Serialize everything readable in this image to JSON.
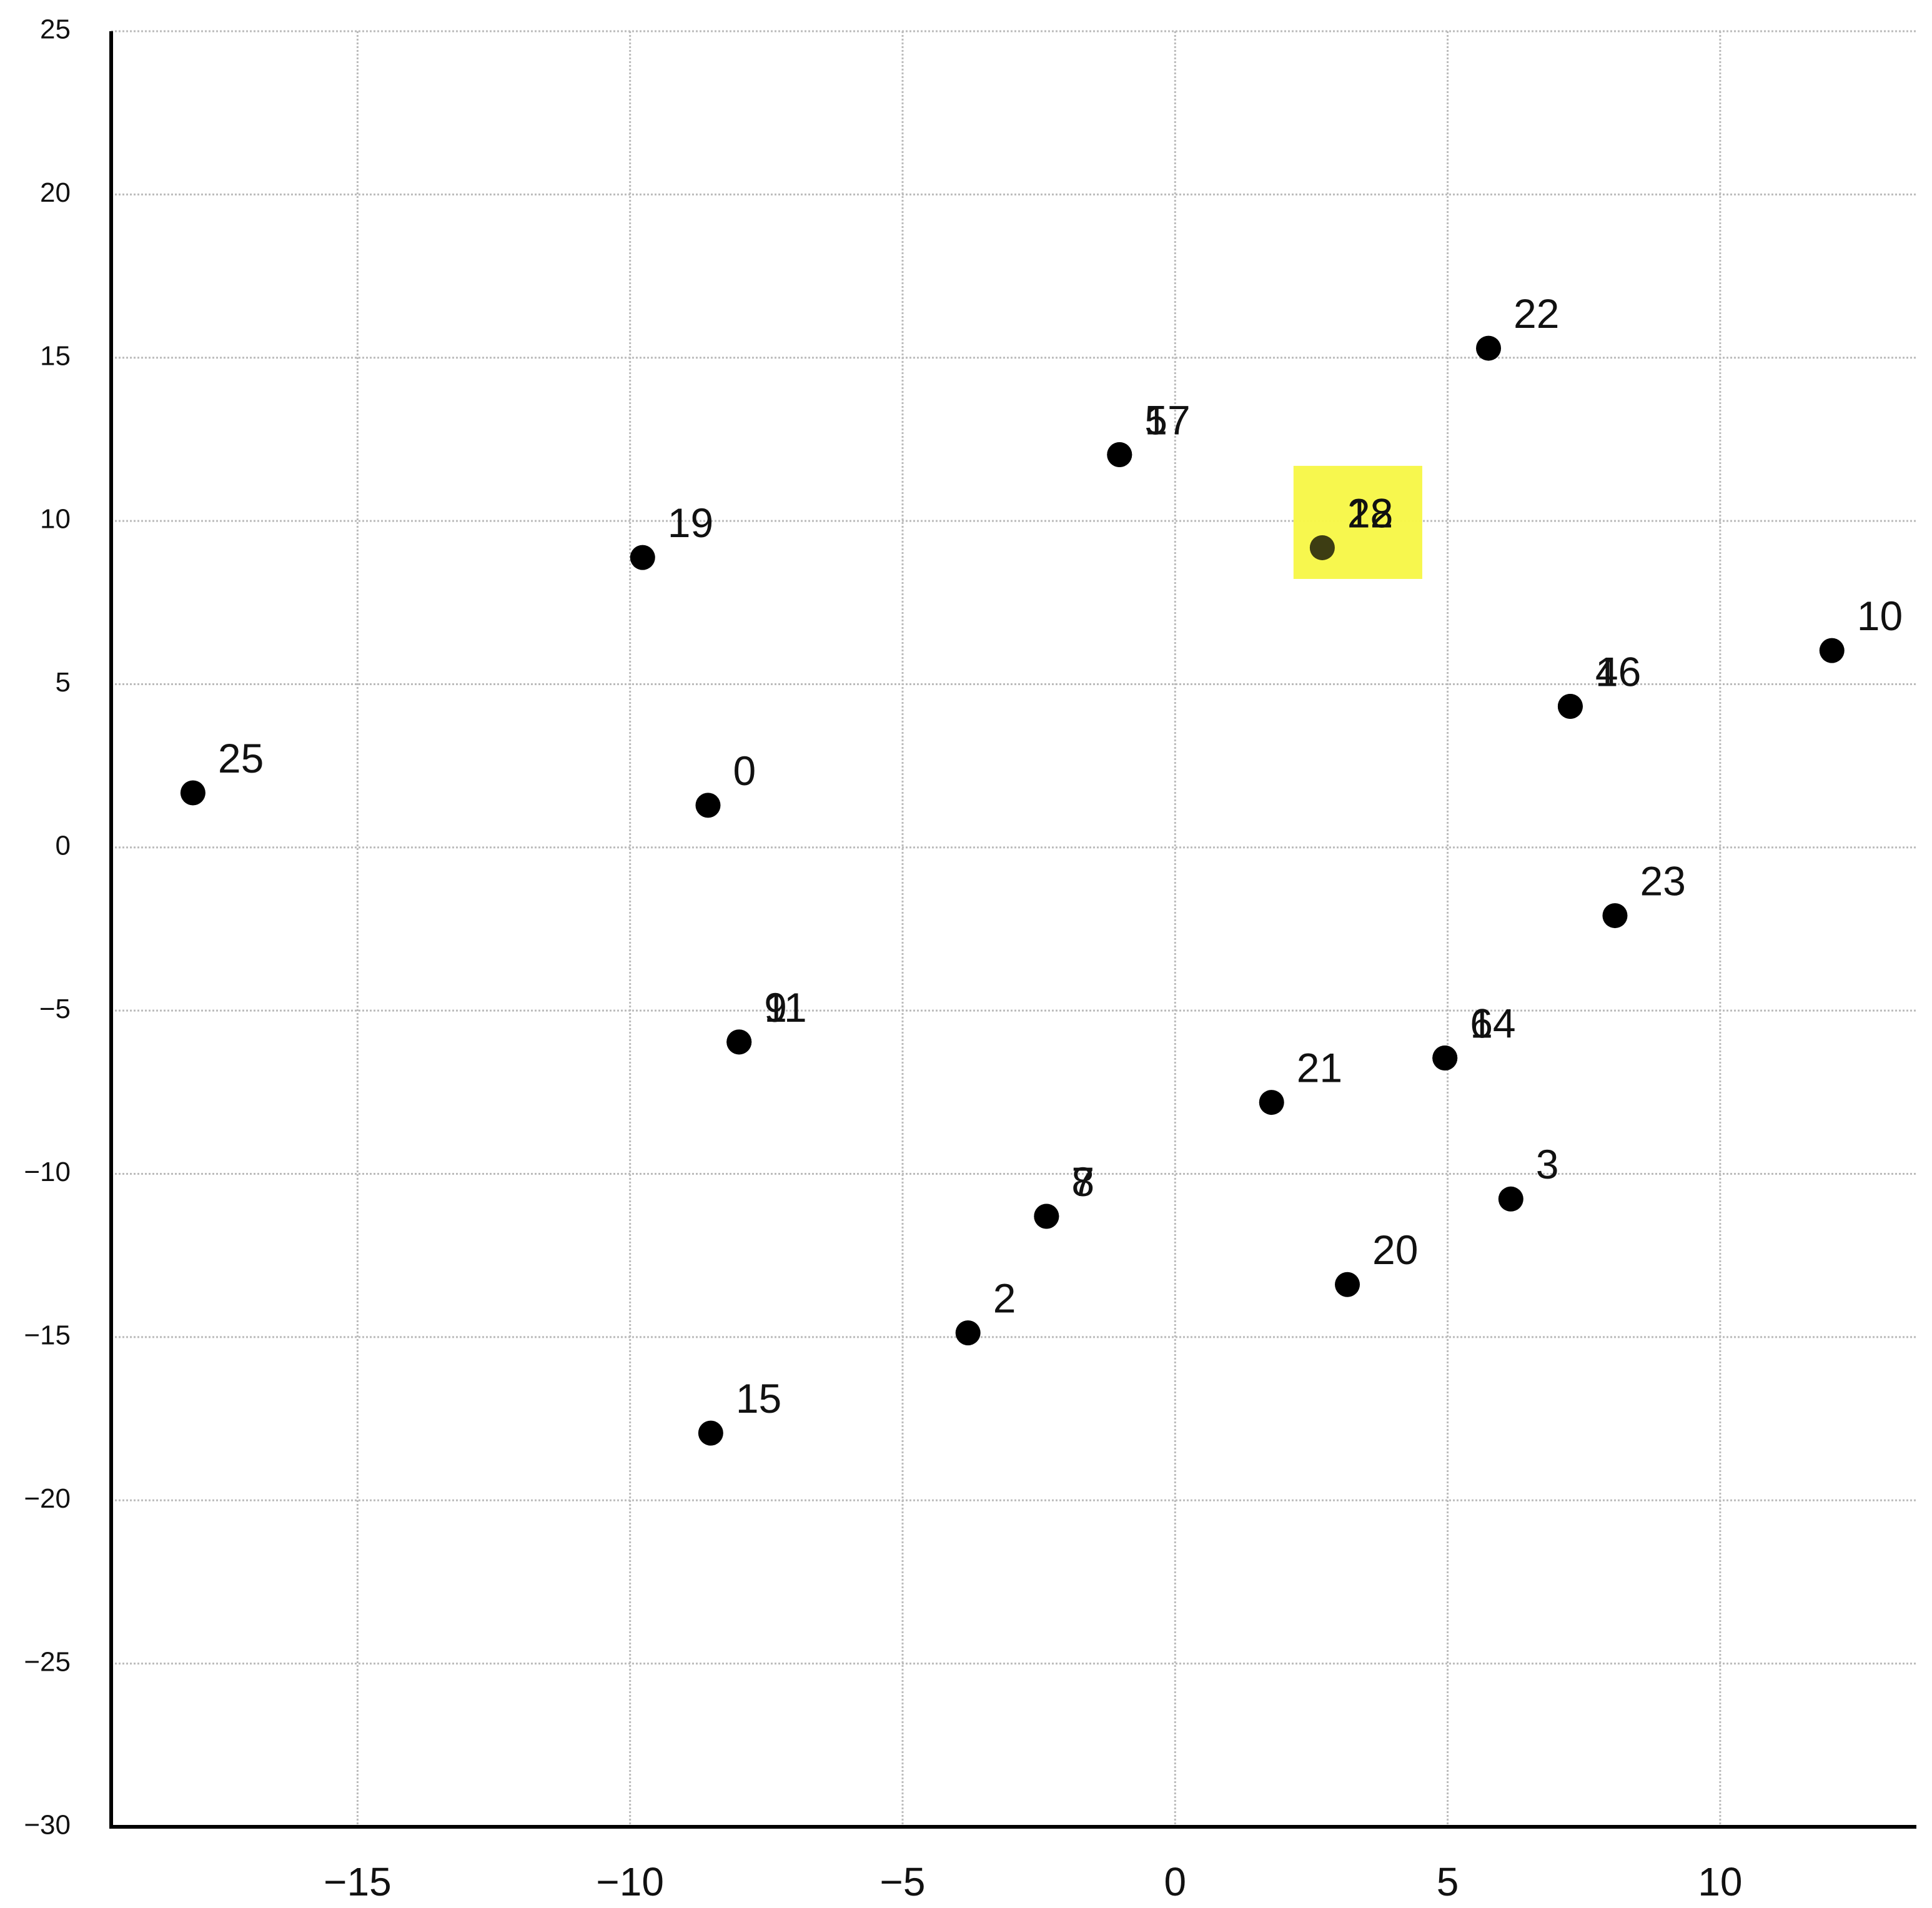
{
  "chart_data": {
    "type": "scatter",
    "labels": [
      "0",
      "2",
      "3",
      "4",
      "5",
      "6",
      "7",
      "8",
      "9",
      "10",
      "11",
      "12",
      "14",
      "15",
      "16",
      "17",
      "19",
      "20",
      "21",
      "22",
      "23",
      "25",
      "28"
    ],
    "x": [
      -8.57,
      -3.8,
      6.16,
      7.25,
      -1.02,
      4.95,
      -2.36,
      -2.36,
      -8.0,
      12.05,
      -8.0,
      2.7,
      4.95,
      -8.52,
      7.25,
      -1.02,
      -9.77,
      3.16,
      1.77,
      5.75,
      8.07,
      -18.02,
      2.7
    ],
    "y": [
      1.29,
      -14.87,
      -10.77,
      4.32,
      12.03,
      -6.45,
      -11.3,
      -11.3,
      -5.96,
      6.03,
      -5.96,
      9.18,
      -6.45,
      -17.94,
      4.32,
      12.03,
      8.88,
      -13.39,
      -7.81,
      15.29,
      -2.09,
      1.67,
      9.18
    ],
    "highlighted": [
      false,
      false,
      false,
      false,
      false,
      false,
      false,
      false,
      false,
      false,
      false,
      true,
      false,
      false,
      false,
      false,
      false,
      false,
      false,
      false,
      false,
      false,
      true
    ],
    "color": "#000000",
    "highlight_color": "#f7f74a",
    "xlim": [
      -19.52,
      13.6
    ],
    "ylim": [
      -30,
      25
    ],
    "xticks": [
      {
        "value": -15,
        "label": "−15"
      },
      {
        "value": -10,
        "label": "−10"
      },
      {
        "value": -5,
        "label": "−5"
      },
      0,
      5,
      10
    ],
    "yticks": [
      {
        "value": -30,
        "label": "−30"
      },
      {
        "value": -25,
        "label": "−25"
      },
      {
        "value": -20,
        "label": "−20"
      },
      {
        "value": -15,
        "label": "−15"
      },
      {
        "value": -10,
        "label": "−10"
      },
      {
        "value": -5,
        "label": "−5"
      },
      0,
      5,
      10,
      15,
      20,
      25
    ],
    "grid": true
  }
}
